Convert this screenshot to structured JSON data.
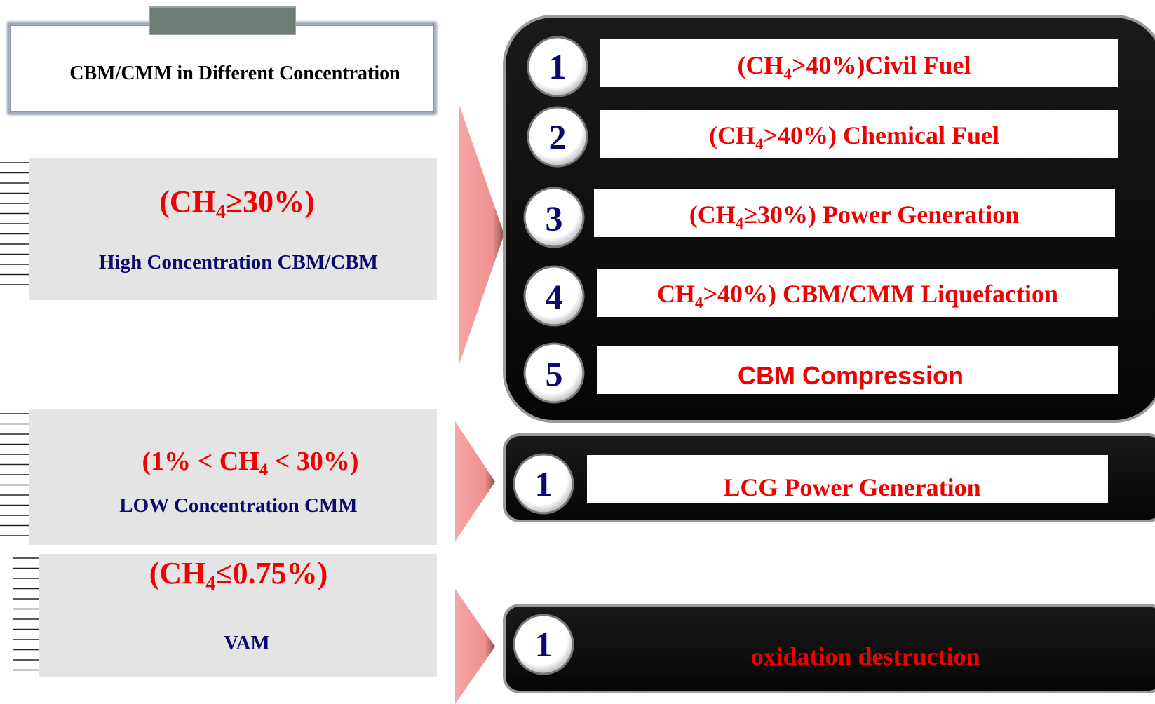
{
  "title": "CBM/CMM in Different Concentration",
  "groups": [
    {
      "range": {
        "before": "(CH",
        "sub": "4",
        "after": "≥30%)"
      },
      "label": "High Concentration CBM/CBM",
      "uses": [
        {
          "number": "1",
          "label": {
            "before": "(CH",
            "sub": "4",
            "after": ">40%)Civil Fuel"
          }
        },
        {
          "number": "2",
          "label": {
            "before": "(CH",
            "sub": "4",
            "after": ">40%) Chemical Fuel"
          }
        },
        {
          "number": "3",
          "label": {
            "before": "(CH",
            "sub": "4",
            "after": "≥30%) Power Generation"
          }
        },
        {
          "number": "4",
          "label": {
            "before": "CH",
            "sub": "4",
            "after": ">40%) CBM/CMM Liquefaction"
          }
        },
        {
          "number": "5",
          "label": "CBM Compression"
        }
      ]
    },
    {
      "range": {
        "before": "(1% < CH",
        "sub": "4",
        "after": " < 30%)"
      },
      "label": "LOW Concentration CMM",
      "uses": [
        {
          "number": "1",
          "label": "LCG Power Generation"
        }
      ]
    },
    {
      "range": {
        "before": "(CH",
        "sub": "4",
        "after": "≤0.75%)"
      },
      "label": "VAM",
      "uses": [
        {
          "number": "1",
          "label": "oxidation destruction"
        }
      ]
    }
  ]
}
